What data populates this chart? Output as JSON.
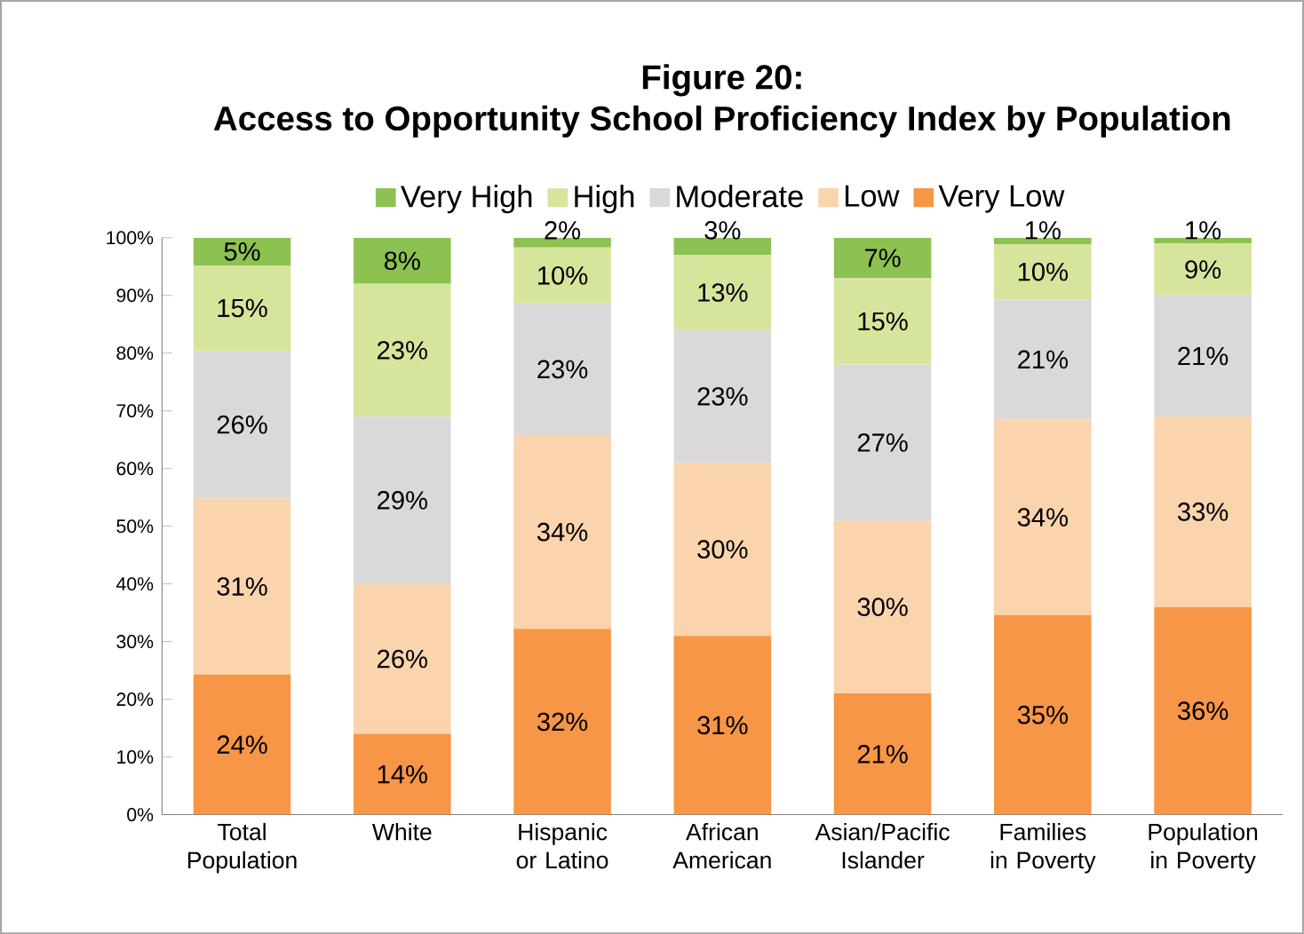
{
  "chart_data": {
    "type": "bar",
    "stacked": true,
    "title": "Figure 20:",
    "subtitle": "Access to Opportunity School Proficiency Index by Population",
    "categories": [
      "Total Population",
      "White",
      "Hispanic or Latino",
      "African American",
      "Asian/Pacific Islander",
      "Families in Poverty",
      "Population in Poverty"
    ],
    "series": [
      {
        "name": "Very Low",
        "color": "#f79646",
        "values": [
          24.3,
          14,
          32.2,
          31,
          21,
          34.6,
          36
        ],
        "value_labels": [
          "24%",
          "14%",
          "32%",
          "31%",
          "21%",
          "35%",
          "36%"
        ]
      },
      {
        "name": "Low",
        "color": "#fad4ac",
        "values": [
          30.5,
          26,
          33.6,
          30,
          30,
          33.9,
          33
        ],
        "value_labels": [
          "31%",
          "26%",
          "34%",
          "30%",
          "30%",
          "34%",
          "33%"
        ]
      },
      {
        "name": "Moderate",
        "color": "#d9d9d9",
        "values": [
          25.6,
          29,
          22.8,
          23,
          27,
          20.8,
          21
        ],
        "value_labels": [
          "26%",
          "29%",
          "23%",
          "23%",
          "27%",
          "21%",
          "21%"
        ]
      },
      {
        "name": "High",
        "color": "#d6e59c",
        "values": [
          14.8,
          23,
          9.7,
          13,
          15,
          9.6,
          9
        ],
        "value_labels": [
          "15%",
          "23%",
          "10%",
          "13%",
          "15%",
          "10%",
          "9%"
        ]
      },
      {
        "name": "Very High",
        "color": "#8dc152",
        "values": [
          4.8,
          8,
          1.7,
          3,
          7,
          1.1,
          1
        ],
        "value_labels": [
          "5%",
          "8%",
          "2%",
          "3%",
          "7%",
          "1%",
          "1%"
        ]
      }
    ],
    "ylim": [
      0,
      100
    ],
    "yticks": [
      {
        "value": 0,
        "label": "0%"
      },
      {
        "value": 10,
        "label": "10%"
      },
      {
        "value": 20,
        "label": "20%"
      },
      {
        "value": 30,
        "label": "30%"
      },
      {
        "value": 40,
        "label": "40%"
      },
      {
        "value": 50,
        "label": "50%"
      },
      {
        "value": 60,
        "label": "60%"
      },
      {
        "value": 70,
        "label": "70%"
      },
      {
        "value": 80,
        "label": "80%"
      },
      {
        "value": 90,
        "label": "90%"
      },
      {
        "value": 100,
        "label": "100%"
      }
    ],
    "legend": "top"
  }
}
